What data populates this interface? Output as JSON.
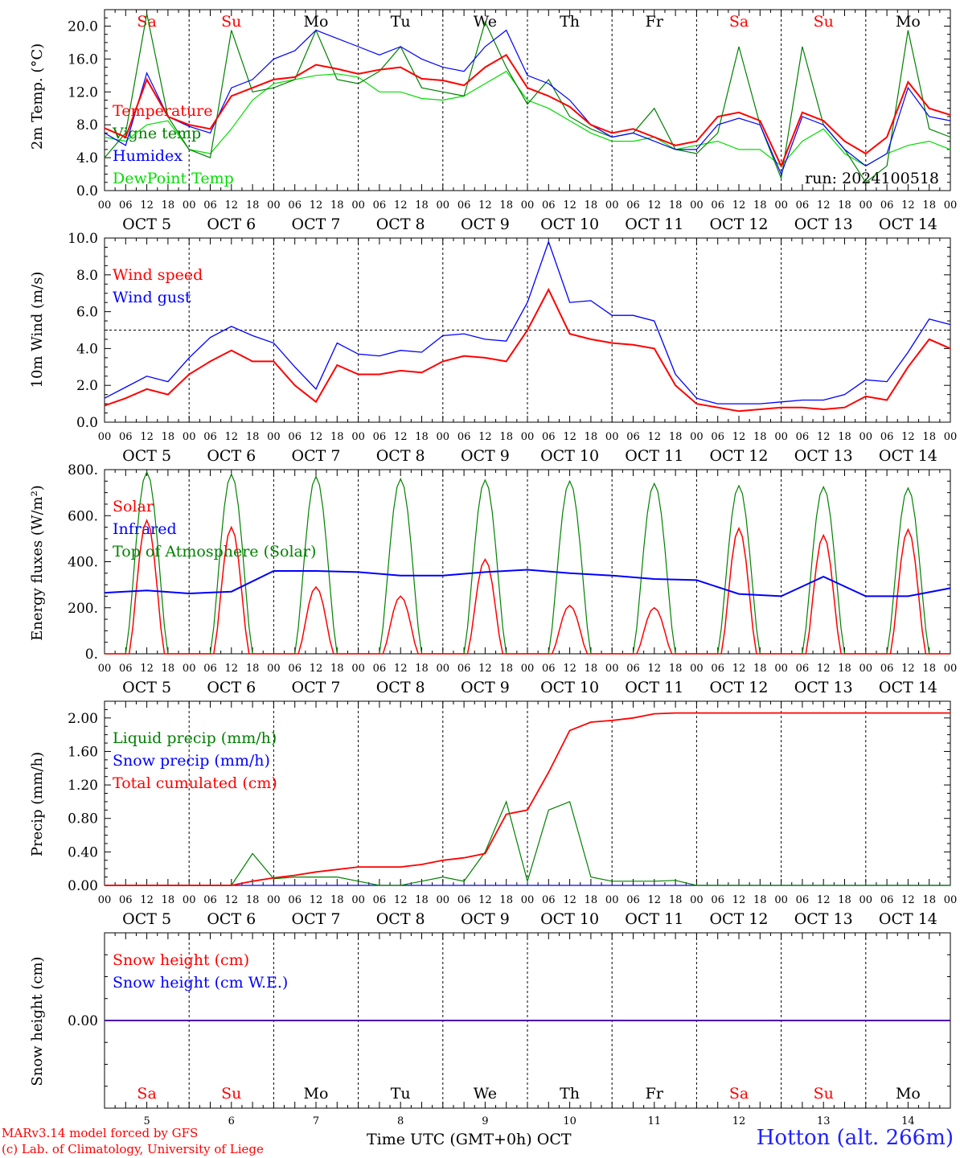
{
  "chart_data": [
    {
      "type": "line",
      "ylabel": "2m Temp. (°C)",
      "yticks": [
        "0.0",
        "4.0",
        "8.0",
        "12.0",
        "16.0",
        "20.0"
      ],
      "ylim": [
        0,
        22
      ],
      "run_label": "run: 2024100518",
      "legend": [
        "Temperature",
        "Vigne temp",
        "Humidex",
        "DewPoint Temp"
      ],
      "colors": {
        "Temperature": "#ff0000",
        "Vigne temp": "#008000",
        "Humidex": "#0000ff",
        "DewPoint Temp": "#00dd00"
      },
      "x_hours": [
        0,
        6,
        12,
        18,
        24,
        30,
        36,
        42,
        48,
        54,
        60,
        66,
        72,
        78,
        84,
        90,
        96,
        102,
        108,
        114,
        120,
        126,
        132,
        138,
        144,
        150,
        156,
        162,
        168,
        174,
        180,
        186,
        192,
        198,
        204,
        210,
        216,
        222,
        228,
        234,
        240
      ],
      "series": [
        {
          "name": "Temperature",
          "values": [
            7.6,
            6.5,
            13.5,
            9.0,
            8.0,
            7.5,
            11.5,
            12.5,
            13.5,
            13.8,
            15.3,
            14.8,
            14.2,
            14.7,
            15.0,
            13.6,
            13.4,
            12.8,
            15.0,
            16.5,
            12.5,
            11.5,
            10.2,
            8.0,
            7.0,
            7.5,
            6.5,
            5.5,
            6.0,
            9.0,
            9.5,
            8.5,
            3.0,
            9.5,
            8.5,
            6.0,
            4.5,
            6.5,
            13.2,
            10.0,
            9.2
          ]
        },
        {
          "name": "Vigne temp",
          "values": [
            4.0,
            7.0,
            21.5,
            9.0,
            5.0,
            4.0,
            19.5,
            12.0,
            12.5,
            13.5,
            19.5,
            13.5,
            13.0,
            14.5,
            17.5,
            12.5,
            12.0,
            11.5,
            20.5,
            15.0,
            10.5,
            13.5,
            9.0,
            7.5,
            6.5,
            7.0,
            10.0,
            5.0,
            4.5,
            7.0,
            17.5,
            8.0,
            1.5,
            17.5,
            8.0,
            5.0,
            1.0,
            3.0,
            19.5,
            7.5,
            6.5
          ]
        },
        {
          "name": "Humidex",
          "values": [
            7.0,
            5.5,
            14.3,
            9.0,
            7.8,
            7.0,
            12.5,
            13.5,
            16.0,
            17.0,
            19.5,
            18.5,
            17.5,
            16.5,
            17.5,
            16.0,
            15.0,
            14.5,
            17.5,
            19.5,
            14.0,
            13.0,
            11.0,
            8.0,
            6.5,
            7.0,
            6.0,
            5.0,
            5.0,
            8.0,
            8.8,
            8.0,
            2.0,
            9.0,
            8.0,
            5.0,
            3.0,
            4.5,
            12.5,
            9.0,
            8.5
          ]
        },
        {
          "name": "DewPoint Temp",
          "values": [
            6.5,
            6.0,
            8.0,
            8.5,
            5.0,
            4.5,
            7.5,
            11.0,
            13.0,
            13.5,
            14.0,
            14.2,
            13.8,
            12.0,
            12.0,
            11.2,
            11.0,
            11.5,
            13.0,
            14.5,
            11.0,
            10.0,
            8.5,
            7.0,
            6.0,
            6.0,
            6.5,
            5.0,
            5.5,
            6.0,
            5.0,
            5.0,
            3.0,
            6.0,
            7.5,
            4.5,
            3.0,
            4.5,
            5.5,
            6.0,
            5.0
          ]
        }
      ]
    },
    {
      "type": "line",
      "ylabel": "10m Wind (m/s)",
      "yticks": [
        "0.0",
        "2.0",
        "4.0",
        "6.0",
        "8.0",
        "10.0"
      ],
      "ylim": [
        0,
        10
      ],
      "reference_line": 5.0,
      "legend": [
        "Wind speed",
        "Wind gust"
      ],
      "colors": {
        "Wind speed": "#ff0000",
        "Wind gust": "#0000ff"
      },
      "x_hours": [
        0,
        6,
        12,
        18,
        24,
        30,
        36,
        42,
        48,
        54,
        60,
        66,
        72,
        78,
        84,
        90,
        96,
        102,
        108,
        114,
        120,
        126,
        132,
        138,
        144,
        150,
        156,
        162,
        168,
        174,
        180,
        186,
        192,
        198,
        204,
        210,
        216,
        222,
        228,
        234,
        240
      ],
      "series": [
        {
          "name": "Wind speed",
          "values": [
            0.9,
            1.3,
            1.8,
            1.5,
            2.6,
            3.3,
            3.9,
            3.3,
            3.3,
            2.0,
            1.1,
            3.1,
            2.6,
            2.6,
            2.8,
            2.7,
            3.3,
            3.6,
            3.5,
            3.3,
            5.0,
            7.2,
            4.8,
            4.5,
            4.3,
            4.2,
            4.0,
            2.0,
            1.0,
            0.8,
            0.6,
            0.7,
            0.8,
            0.8,
            0.7,
            0.8,
            1.4,
            1.2,
            3.0,
            4.5,
            4.0
          ]
        },
        {
          "name": "Wind gust",
          "values": [
            1.3,
            1.9,
            2.5,
            2.2,
            3.5,
            4.6,
            5.2,
            4.7,
            4.3,
            3.0,
            1.8,
            4.3,
            3.7,
            3.6,
            3.9,
            3.8,
            4.7,
            4.8,
            4.5,
            4.4,
            6.5,
            9.8,
            6.5,
            6.6,
            5.8,
            5.8,
            5.5,
            2.6,
            1.3,
            1.0,
            1.0,
            1.0,
            1.1,
            1.2,
            1.2,
            1.5,
            2.3,
            2.2,
            3.8,
            5.6,
            5.3
          ]
        }
      ]
    },
    {
      "type": "line",
      "ylabel": "Energy fluxes (W/m²)",
      "yticks": [
        "0.",
        "200.",
        "400.",
        "600.",
        "800."
      ],
      "ylim": [
        0,
        800
      ],
      "legend": [
        "Solar",
        "Infrared",
        "Top of Atmosphere (Solar)"
      ],
      "colors": {
        "Solar": "#ff0000",
        "Infrared": "#0000ff",
        "Top of Atmosphere (Solar)": "#008000"
      },
      "toa_daily_peak": [
        790,
        780,
        770,
        760,
        755,
        750,
        740,
        730,
        725,
        720
      ],
      "solar_daily_peak": [
        580,
        550,
        290,
        250,
        410,
        210,
        200,
        545,
        515,
        540
      ],
      "infrared_x_hours": [
        0,
        12,
        24,
        36,
        48,
        60,
        72,
        84,
        96,
        108,
        120,
        132,
        144,
        156,
        168,
        180,
        192,
        204,
        216,
        228,
        240
      ],
      "infrared_values": [
        265,
        275,
        262,
        270,
        360,
        360,
        355,
        340,
        340,
        355,
        365,
        350,
        340,
        325,
        320,
        260,
        250,
        335,
        250,
        250,
        285
      ]
    },
    {
      "type": "line",
      "ylabel": "Precip (mm/h)",
      "yticks": [
        "0.00",
        "0.40",
        "0.80",
        "1.20",
        "1.60",
        "2.00"
      ],
      "ylim": [
        0,
        2.2
      ],
      "legend": [
        "Liquid precip (mm/h)",
        "Snow precip (mm/h)",
        "Total cumulated (cm)"
      ],
      "colors": {
        "Liquid precip (mm/h)": "#008000",
        "Snow precip (mm/h)": "#0000ff",
        "Total cumulated (cm)": "#ff0000"
      },
      "x_hours": [
        0,
        6,
        12,
        18,
        24,
        30,
        36,
        42,
        48,
        54,
        60,
        66,
        72,
        78,
        84,
        90,
        96,
        102,
        108,
        114,
        120,
        126,
        132,
        138,
        144,
        150,
        156,
        162,
        168,
        174,
        180,
        186,
        192,
        198,
        204,
        210,
        216,
        222,
        228,
        234,
        240
      ],
      "series": [
        {
          "name": "Liquid precip (mm/h)",
          "values": [
            0,
            0,
            0,
            0,
            0,
            0,
            0,
            0.38,
            0.08,
            0.1,
            0.1,
            0.1,
            0.05,
            0,
            0,
            0.05,
            0.1,
            0.05,
            0.4,
            1.0,
            0.05,
            0.9,
            1.0,
            0.1,
            0.05,
            0.05,
            0.05,
            0.06,
            0,
            0,
            0,
            0,
            0,
            0,
            0,
            0,
            0,
            0,
            0,
            0,
            0
          ]
        },
        {
          "name": "Snow precip (mm/h)",
          "values": [
            0,
            0,
            0,
            0,
            0,
            0,
            0,
            0,
            0,
            0,
            0,
            0,
            0,
            0,
            0,
            0,
            0,
            0,
            0,
            0,
            0,
            0,
            0,
            0,
            0,
            0,
            0,
            0,
            0,
            0,
            0,
            0,
            0,
            0,
            0,
            0,
            0,
            0,
            0,
            0,
            0
          ]
        },
        {
          "name": "Total cumulated (cm)",
          "values": [
            0,
            0,
            0,
            0,
            0,
            0,
            0,
            0.05,
            0.09,
            0.12,
            0.16,
            0.19,
            0.22,
            0.22,
            0.22,
            0.25,
            0.3,
            0.33,
            0.38,
            0.85,
            0.9,
            1.35,
            1.85,
            1.95,
            1.97,
            2.0,
            2.05,
            2.06,
            2.06,
            2.06,
            2.06,
            2.06,
            2.06,
            2.06,
            2.06,
            2.06,
            2.06,
            2.06,
            2.06,
            2.06,
            2.06
          ]
        }
      ]
    },
    {
      "type": "line",
      "ylabel": "Snow height (cm)",
      "yticks": [
        "0.00"
      ],
      "legend": [
        "Snow height (cm)",
        "Snow height (cm W.E.)"
      ],
      "colors": {
        "Snow height (cm)": "#ff0000",
        "Snow height (cm W.E.)": "#0000ff"
      },
      "series": [
        {
          "name": "Snow height (cm)",
          "values": [
            0,
            0
          ]
        },
        {
          "name": "Snow height (cm W.E.)",
          "values": [
            0,
            0
          ]
        }
      ]
    }
  ],
  "hour_ticks": [
    "00",
    "06",
    "12",
    "18"
  ],
  "date_labels": [
    "OCT  5",
    "OCT  6",
    "OCT  7",
    "OCT  8",
    "OCT  9",
    "OCT 10",
    "OCT 11",
    "OCT 12",
    "OCT 13",
    "OCT 14"
  ],
  "weekdays": [
    "Sa",
    "Su",
    "Mo",
    "Tu",
    "We",
    "Th",
    "Fr",
    "Sa",
    "Su",
    "Mo"
  ],
  "weekday_colors": [
    "#ff0000",
    "#ff0000",
    "#000000",
    "#000000",
    "#000000",
    "#000000",
    "#000000",
    "#ff0000",
    "#ff0000",
    "#000000"
  ],
  "day_numbers": [
    "5",
    "6",
    "7",
    "8",
    "9",
    "10",
    "11",
    "12",
    "13",
    "14"
  ],
  "x_title": "Time UTC (GMT+0h)",
  "x_title_month": "OCT",
  "footer_line1": "MARv3.14 model forced by GFS",
  "footer_line2": "(c) Lab. of Climatology, University of Liege",
  "station": "Hotton (alt. 266m)"
}
